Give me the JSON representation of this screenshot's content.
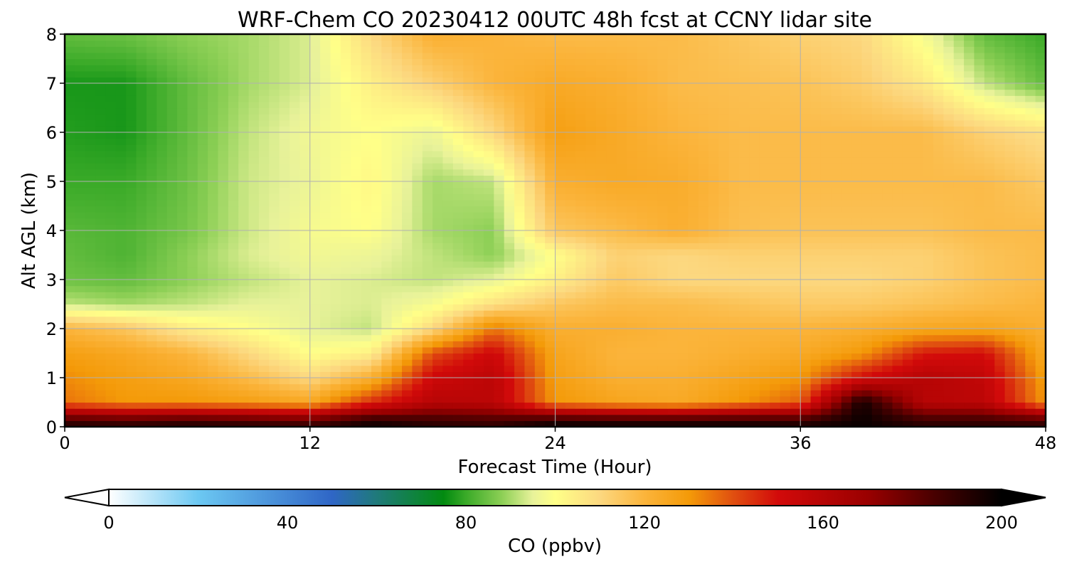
{
  "chart_data": {
    "type": "heatmap",
    "title": "WRF-Chem CO  20230412 00UTC 48h fcst at CCNY lidar site",
    "xlabel": "Forecast Time (Hour)",
    "ylabel": "Alt AGL (km)",
    "xlim": [
      0,
      48
    ],
    "ylim": [
      0,
      8
    ],
    "x_ticks": [
      0,
      12,
      24,
      36,
      48
    ],
    "y_ticks": [
      0,
      1,
      2,
      3,
      4,
      5,
      6,
      7,
      8
    ],
    "grid": true,
    "x": [
      0,
      3,
      6,
      9,
      12,
      15,
      18,
      21,
      24,
      27,
      30,
      33,
      36,
      39,
      42,
      45,
      48
    ],
    "y": [
      0.1,
      0.5,
      1,
      1.5,
      2,
      2.5,
      3,
      3.5,
      4,
      5,
      6,
      7,
      8
    ],
    "z": [
      [
        190,
        188,
        190,
        188,
        185,
        195,
        190,
        188,
        195,
        194,
        194,
        194,
        192,
        198,
        190,
        190,
        188
      ],
      [
        135,
        130,
        130,
        128,
        125,
        145,
        160,
        158,
        130,
        126,
        124,
        130,
        138,
        196,
        160,
        158,
        130
      ],
      [
        132,
        128,
        125,
        118,
        110,
        122,
        152,
        158,
        128,
        122,
        122,
        126,
        130,
        150,
        160,
        156,
        128
      ],
      [
        128,
        125,
        120,
        110,
        100,
        104,
        140,
        152,
        126,
        120,
        120,
        122,
        124,
        130,
        148,
        150,
        124
      ],
      [
        120,
        115,
        105,
        100,
        95,
        92,
        110,
        135,
        122,
        122,
        120,
        120,
        120,
        122,
        125,
        126,
        122
      ],
      [
        92,
        90,
        92,
        95,
        95,
        94,
        98,
        108,
        115,
        118,
        118,
        116,
        114,
        114,
        116,
        118,
        120
      ],
      [
        85,
        84,
        88,
        92,
        95,
        94,
        92,
        95,
        104,
        114,
        110,
        110,
        110,
        110,
        112,
        116,
        118
      ],
      [
        84,
        82,
        88,
        94,
        97,
        96,
        92,
        88,
        100,
        112,
        110,
        112,
        112,
        112,
        112,
        116,
        118
      ],
      [
        83,
        82,
        86,
        93,
        98,
        100,
        90,
        88,
        115,
        118,
        122,
        117,
        116,
        116,
        116,
        118,
        118
      ],
      [
        80,
        80,
        85,
        93,
        96,
        102,
        90,
        92,
        122,
        124,
        123,
        118,
        118,
        118,
        118,
        118,
        114
      ],
      [
        78,
        77,
        84,
        92,
        97,
        100,
        96,
        110,
        128,
        124,
        120,
        118,
        118,
        118,
        118,
        112,
        108
      ],
      [
        77,
        77,
        84,
        90,
        94,
        104,
        112,
        120,
        124,
        122,
        118,
        117,
        116,
        113,
        106,
        92,
        84
      ],
      [
        84,
        85,
        88,
        90,
        94,
        110,
        122,
        120,
        118,
        118,
        118,
        115,
        112,
        110,
        98,
        84,
        80
      ]
    ],
    "colorbar": {
      "label": "CO  (ppbv)",
      "min": 0,
      "max": 200,
      "ticks": [
        0,
        40,
        80,
        120,
        160,
        200
      ],
      "extend": "both",
      "stops": [
        {
          "v": 0,
          "c": "#ffffff"
        },
        {
          "v": 20,
          "c": "#6cc8f2"
        },
        {
          "v": 50,
          "c": "#2f66c6"
        },
        {
          "v": 60,
          "c": "#1f7a7a"
        },
        {
          "v": 75,
          "c": "#028a10"
        },
        {
          "v": 80,
          "c": "#3aaa28"
        },
        {
          "v": 88,
          "c": "#8ccf55"
        },
        {
          "v": 95,
          "c": "#e8f29a"
        },
        {
          "v": 100,
          "c": "#ffff88"
        },
        {
          "v": 110,
          "c": "#fcd880"
        },
        {
          "v": 120,
          "c": "#fbb43b"
        },
        {
          "v": 130,
          "c": "#f49a08"
        },
        {
          "v": 140,
          "c": "#e04e10"
        },
        {
          "v": 150,
          "c": "#d20a0a"
        },
        {
          "v": 170,
          "c": "#9a0000"
        },
        {
          "v": 185,
          "c": "#480000"
        },
        {
          "v": 200,
          "c": "#000000"
        }
      ]
    }
  }
}
